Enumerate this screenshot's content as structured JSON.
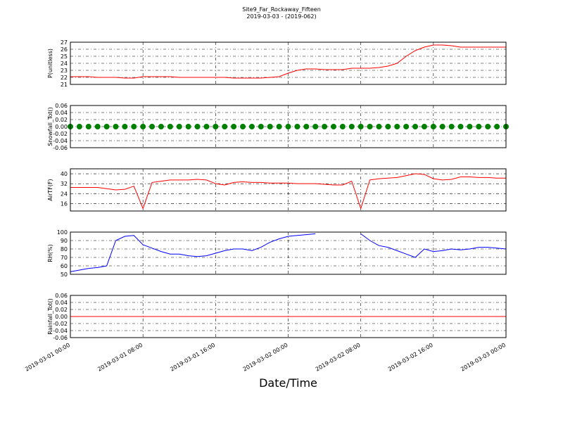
{
  "chart_data": [
    {
      "type": "line",
      "title": "Site9_Far_Rockaway_Fifteen",
      "subtitle": "2019-03-03 - (2019-062)",
      "ylabel": "P(unitless)",
      "x": [
        "2019-03-01 00:00",
        "2019-03-01 01:00",
        "2019-03-01 02:00",
        "2019-03-01 03:00",
        "2019-03-01 04:00",
        "2019-03-01 05:00",
        "2019-03-01 06:00",
        "2019-03-01 07:00",
        "2019-03-01 08:00",
        "2019-03-01 09:00",
        "2019-03-01 10:00",
        "2019-03-01 11:00",
        "2019-03-01 12:00",
        "2019-03-01 13:00",
        "2019-03-01 14:00",
        "2019-03-01 15:00",
        "2019-03-01 16:00",
        "2019-03-01 17:00",
        "2019-03-01 18:00",
        "2019-03-01 19:00",
        "2019-03-01 20:00",
        "2019-03-01 21:00",
        "2019-03-01 22:00",
        "2019-03-01 23:00",
        "2019-03-02 00:00",
        "2019-03-02 01:00",
        "2019-03-02 02:00",
        "2019-03-02 03:00",
        "2019-03-02 04:00",
        "2019-03-02 05:00",
        "2019-03-02 06:00",
        "2019-03-02 07:00",
        "2019-03-02 08:00",
        "2019-03-02 09:00",
        "2019-03-02 10:00",
        "2019-03-02 11:00",
        "2019-03-02 12:00",
        "2019-03-02 13:00",
        "2019-03-02 14:00",
        "2019-03-02 15:00",
        "2019-03-02 16:00",
        "2019-03-02 17:00",
        "2019-03-02 18:00",
        "2019-03-02 19:00",
        "2019-03-02 20:00",
        "2019-03-02 21:00",
        "2019-03-02 22:00",
        "2019-03-02 23:00",
        "2019-03-03 00:00"
      ],
      "series": [
        {
          "color": "#ff0000",
          "values": [
            22.1,
            22.1,
            22.1,
            22.0,
            22.0,
            22.0,
            21.9,
            21.9,
            22.1,
            22.1,
            22.1,
            22.1,
            22.0,
            22.0,
            22.0,
            22.0,
            22.0,
            22.0,
            21.9,
            21.9,
            21.9,
            21.9,
            22.0,
            22.1,
            22.6,
            23.0,
            23.2,
            23.2,
            23.1,
            23.1,
            23.1,
            23.3,
            23.3,
            23.3,
            23.4,
            23.6,
            24.0,
            25.0,
            25.8,
            26.3,
            26.6,
            26.6,
            26.5,
            26.3,
            26.3,
            26.3,
            26.3,
            26.3,
            26.3
          ]
        }
      ],
      "xlim": [
        "2019-03-01 00:00",
        "2019-03-03 00:00"
      ],
      "xticks": [
        "2019-03-01 00:00",
        "2019-03-01 08:00",
        "2019-03-01 16:00",
        "2019-03-02 00:00",
        "2019-03-02 08:00",
        "2019-03-02 16:00",
        "2019-03-03 00:00"
      ],
      "ylim": [
        21,
        27
      ],
      "yticks": [
        21,
        22,
        23,
        24,
        25,
        26,
        27
      ],
      "grid": true
    },
    {
      "type": "scatter",
      "ylabel": "Snowfall_Tot()",
      "x": [
        "2019-03-01 00:00",
        "2019-03-01 01:00",
        "2019-03-01 02:00",
        "2019-03-01 03:00",
        "2019-03-01 04:00",
        "2019-03-01 05:00",
        "2019-03-01 06:00",
        "2019-03-01 07:00",
        "2019-03-01 08:00",
        "2019-03-01 09:00",
        "2019-03-01 10:00",
        "2019-03-01 11:00",
        "2019-03-01 12:00",
        "2019-03-01 13:00",
        "2019-03-01 14:00",
        "2019-03-01 15:00",
        "2019-03-01 16:00",
        "2019-03-01 17:00",
        "2019-03-01 18:00",
        "2019-03-01 19:00",
        "2019-03-01 20:00",
        "2019-03-01 21:00",
        "2019-03-01 22:00",
        "2019-03-01 23:00",
        "2019-03-02 00:00",
        "2019-03-02 01:00",
        "2019-03-02 02:00",
        "2019-03-02 03:00",
        "2019-03-02 04:00",
        "2019-03-02 05:00",
        "2019-03-02 06:00",
        "2019-03-02 07:00",
        "2019-03-02 08:00",
        "2019-03-02 09:00",
        "2019-03-02 10:00",
        "2019-03-02 11:00",
        "2019-03-02 12:00",
        "2019-03-02 13:00",
        "2019-03-02 14:00",
        "2019-03-02 15:00",
        "2019-03-02 16:00",
        "2019-03-02 17:00",
        "2019-03-02 18:00",
        "2019-03-02 19:00",
        "2019-03-02 20:00",
        "2019-03-02 21:00",
        "2019-03-02 22:00",
        "2019-03-02 23:00",
        "2019-03-03 00:00"
      ],
      "series": [
        {
          "color": "#008000",
          "values": [
            0,
            0,
            0,
            0,
            0,
            0,
            0,
            0,
            0,
            0,
            0,
            0,
            0,
            0,
            0,
            0,
            0,
            0,
            0,
            0,
            0,
            0,
            0,
            0,
            0,
            0,
            0,
            0,
            0,
            0,
            0,
            0,
            0,
            0,
            0,
            0,
            0,
            0,
            0,
            0,
            0,
            0,
            0,
            0,
            0,
            0,
            0,
            0,
            0
          ]
        }
      ],
      "xlim": [
        "2019-03-01 00:00",
        "2019-03-03 00:00"
      ],
      "xticks": [
        "2019-03-01 00:00",
        "2019-03-01 08:00",
        "2019-03-01 16:00",
        "2019-03-02 00:00",
        "2019-03-02 08:00",
        "2019-03-02 16:00",
        "2019-03-03 00:00"
      ],
      "ylim": [
        -0.06,
        0.06
      ],
      "yticks": [
        -0.06,
        -0.04,
        -0.02,
        {
          "value": 0,
          "label": "0.00"
        },
        0.02,
        0.04,
        0.06
      ],
      "grid": true
    },
    {
      "type": "line",
      "ylabel": "AirTF(F)",
      "x": [
        "2019-03-01 00:00",
        "2019-03-01 01:00",
        "2019-03-01 02:00",
        "2019-03-01 03:00",
        "2019-03-01 04:00",
        "2019-03-01 05:00",
        "2019-03-01 06:00",
        "2019-03-01 07:00",
        "2019-03-01 08:00",
        "2019-03-01 09:00",
        "2019-03-01 10:00",
        "2019-03-01 11:00",
        "2019-03-01 12:00",
        "2019-03-01 13:00",
        "2019-03-01 14:00",
        "2019-03-01 15:00",
        "2019-03-01 16:00",
        "2019-03-01 17:00",
        "2019-03-01 18:00",
        "2019-03-01 19:00",
        "2019-03-01 20:00",
        "2019-03-01 21:00",
        "2019-03-01 22:00",
        "2019-03-01 23:00",
        "2019-03-02 00:00",
        "2019-03-02 01:00",
        "2019-03-02 02:00",
        "2019-03-02 03:00",
        "2019-03-02 04:00",
        "2019-03-02 05:00",
        "2019-03-02 06:00",
        "2019-03-02 07:00",
        "2019-03-02 08:00",
        "2019-03-02 09:00",
        "2019-03-02 10:00",
        "2019-03-02 11:00",
        "2019-03-02 12:00",
        "2019-03-02 13:00",
        "2019-03-02 14:00",
        "2019-03-02 15:00",
        "2019-03-02 16:00",
        "2019-03-02 17:00",
        "2019-03-02 18:00",
        "2019-03-02 19:00",
        "2019-03-02 20:00",
        "2019-03-02 21:00",
        "2019-03-02 22:00",
        "2019-03-02 23:00",
        "2019-03-03 00:00"
      ],
      "series": [
        {
          "color": "#ff0000",
          "values": [
            29,
            29,
            29,
            29,
            28,
            27,
            27.5,
            30,
            12,
            33,
            34,
            35,
            35,
            35,
            35.5,
            35,
            32,
            31,
            33,
            33.5,
            33,
            33,
            32.5,
            32.5,
            32.5,
            32,
            32,
            32,
            31.5,
            31,
            31,
            34,
            12,
            35,
            36,
            36.5,
            37,
            38.5,
            40,
            39.5,
            36,
            35,
            35.5,
            37.5,
            37.5,
            37,
            37,
            36.5,
            36.5
          ]
        }
      ],
      "xlim": [
        "2019-03-01 00:00",
        "2019-03-03 00:00"
      ],
      "xticks": [
        "2019-03-01 00:00",
        "2019-03-01 08:00",
        "2019-03-01 16:00",
        "2019-03-02 00:00",
        "2019-03-02 08:00",
        "2019-03-02 16:00",
        "2019-03-03 00:00"
      ],
      "ylim": [
        10,
        44
      ],
      "yticks": [
        16,
        24,
        32,
        40
      ],
      "grid": true
    },
    {
      "type": "line",
      "ylabel": "RH(%)",
      "x": [
        "2019-03-01 00:00",
        "2019-03-01 01:00",
        "2019-03-01 02:00",
        "2019-03-01 03:00",
        "2019-03-01 04:00",
        "2019-03-01 05:00",
        "2019-03-01 06:00",
        "2019-03-01 07:00",
        "2019-03-01 08:00",
        "2019-03-01 09:00",
        "2019-03-01 10:00",
        "2019-03-01 11:00",
        "2019-03-01 12:00",
        "2019-03-01 13:00",
        "2019-03-01 14:00",
        "2019-03-01 15:00",
        "2019-03-01 16:00",
        "2019-03-01 17:00",
        "2019-03-01 18:00",
        "2019-03-01 19:00",
        "2019-03-01 20:00",
        "2019-03-01 21:00",
        "2019-03-01 22:00",
        "2019-03-01 23:00",
        "2019-03-02 00:00",
        "2019-03-02 01:00",
        "2019-03-02 02:00",
        "2019-03-02 03:00",
        "2019-03-02 04:00",
        "2019-03-02 05:00",
        "2019-03-02 06:00",
        "2019-03-02 07:00",
        "2019-03-02 08:00",
        "2019-03-02 09:00",
        "2019-03-02 10:00",
        "2019-03-02 11:00",
        "2019-03-02 12:00",
        "2019-03-02 13:00",
        "2019-03-02 14:00",
        "2019-03-02 15:00",
        "2019-03-02 16:00",
        "2019-03-02 17:00",
        "2019-03-02 18:00",
        "2019-03-02 19:00",
        "2019-03-02 20:00",
        "2019-03-02 21:00",
        "2019-03-02 22:00",
        "2019-03-02 23:00",
        "2019-03-03 00:00"
      ],
      "series": [
        {
          "color": "#0000ff",
          "values": [
            53,
            55,
            57,
            58,
            60,
            90,
            95,
            96,
            85,
            81,
            77,
            74,
            74,
            72,
            71,
            72,
            75,
            78,
            80,
            80,
            78,
            82,
            88,
            92,
            95,
            96,
            97,
            98,
            null,
            null,
            null,
            null,
            98,
            90,
            84,
            82,
            78,
            74,
            70,
            80,
            77,
            78,
            80,
            79,
            80,
            82,
            82,
            81,
            80
          ]
        }
      ],
      "xlim": [
        "2019-03-01 00:00",
        "2019-03-03 00:00"
      ],
      "xticks": [
        "2019-03-01 00:00",
        "2019-03-01 08:00",
        "2019-03-01 16:00",
        "2019-03-02 00:00",
        "2019-03-02 08:00",
        "2019-03-02 16:00",
        "2019-03-03 00:00"
      ],
      "ylim": [
        50,
        100
      ],
      "yticks": [
        50,
        60,
        70,
        80,
        90,
        100
      ],
      "grid": true
    },
    {
      "type": "line",
      "ylabel": "Rainfall_Tot()",
      "xlabel": "Date/Time",
      "x": [
        "2019-03-01 00:00",
        "2019-03-03 00:00"
      ],
      "series": [
        {
          "color": "#ff0000",
          "values": [
            0,
            0
          ]
        }
      ],
      "xlim": [
        "2019-03-01 00:00",
        "2019-03-03 00:00"
      ],
      "xticks": [
        "2019-03-01 00:00",
        "2019-03-01 08:00",
        "2019-03-01 16:00",
        "2019-03-02 00:00",
        "2019-03-02 08:00",
        "2019-03-02 16:00",
        "2019-03-03 00:00"
      ],
      "ylim": [
        -0.06,
        0.06
      ],
      "yticks": [
        -0.06,
        -0.04,
        -0.02,
        {
          "value": 0,
          "label": "0.00"
        },
        0.02,
        0.04,
        0.06
      ],
      "grid": true
    }
  ]
}
